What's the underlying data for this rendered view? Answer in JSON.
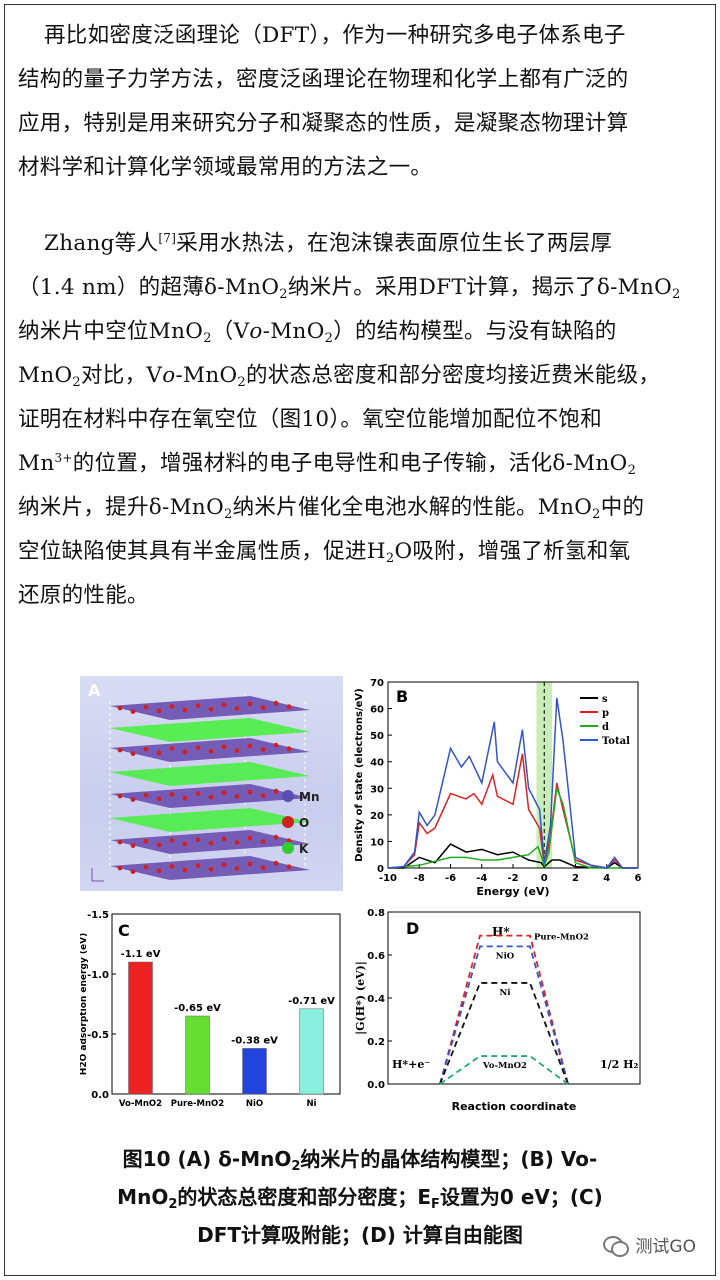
{
  "paragraph1": [
    "再比如密度泛函理论（DFT），作为一种研究多电子体系电子",
    "结构的量子力学方法，密度泛函理论在物理和化学上都有广泛的",
    "应用，特别是用来研究分子和凝聚态的性质，是凝聚态物理计算",
    "材料学和计算化学领域最常用的方法之一。"
  ],
  "paragraph2": {
    "l1a": "Zhang等人",
    "l1ref": "[7]",
    "l1b": "采用水热法，在泡沫镍表面原位生长了两层厚",
    "l2a": "（1.4 nm）的超薄δ-MnO",
    "l2sub": "2",
    "l2b": "纳米片。采用DFT计算，揭示了δ-MnO",
    "l2sub2": "2",
    "l3a": "纳米片中空位MnO",
    "l3sub": "2",
    "l3b": "（V",
    "l3o": "o",
    "l3c": "-MnO",
    "l3sub2": "2",
    "l3d": "）的结构模型。与没有缺陷的",
    "l4a": "MnO",
    "l4sub": "2",
    "l4b": "对比，V",
    "l4o": "o",
    "l4c": "-MnO",
    "l4sub2": "2",
    "l4d": "的状态总密度和部分密度均接近费米能级，",
    "l5": "证明在材料中存在氧空位（图10）。氧空位能增加配位不饱和",
    "l6a": "Mn",
    "l6sup": "3+",
    "l6b": "的位置，增强材料的电子电导性和电子传输，活化δ-MnO",
    "l6sub": "2",
    "l7a": "纳米片，提升δ-MnO",
    "l7sub": "2",
    "l7b": "纳米片催化全电池水解的性能。MnO",
    "l7sub2": "2",
    "l7c": "中的",
    "l8a": "空位缺陷使其具有半金属性质，促进H",
    "l8sub": "2",
    "l8b": "O吸附，增强了析氢和氧",
    "l9": "还原的性能。"
  },
  "figure": {
    "panelA": {
      "label": "A",
      "legend": [
        "Mn",
        "O",
        "K"
      ],
      "colors": [
        "#5a4fb0",
        "#cc2222",
        "#33cc33"
      ]
    },
    "panelB": {
      "label": "B",
      "ylabel": "Density of state (electrons/eV)",
      "xlabel": "Energy (eV)",
      "yticks": [
        "0",
        "10",
        "20",
        "30",
        "40",
        "50",
        "60",
        "70"
      ],
      "xticks": [
        "-10",
        "-8",
        "-6",
        "-4",
        "-2",
        "0",
        "2",
        "4",
        "6"
      ],
      "legend": [
        "s",
        "p",
        "d",
        "Total"
      ],
      "colors": [
        "#000000",
        "#dd2222",
        "#22aa22",
        "#3355cc"
      ]
    },
    "panelC": {
      "label": "C",
      "ylabel": "H2O adsorption energy (eV)",
      "yticks": [
        "-1.5",
        "-1.0",
        "-0.5",
        "0.0"
      ],
      "categories": [
        "Vo-MnO2",
        "Pure-MnO2",
        "NiO",
        "Ni"
      ],
      "values": [
        -1.1,
        -0.65,
        -0.38,
        -0.71
      ],
      "value_labels": [
        "-1.1 eV",
        "-0.65 eV",
        "-0.38 eV",
        "-0.71 eV"
      ],
      "colors": [
        "#ee2222",
        "#66dd33",
        "#2244dd",
        "#88eedd"
      ]
    },
    "panelD": {
      "label": "D",
      "ylabel": "|G(H*) (eV)|",
      "xlabel": "Reaction coordinate",
      "yticks": [
        "0.0",
        "0.2",
        "0.4",
        "0.6",
        "0.8"
      ],
      "levels": [
        {
          "name": "Pure-MnO2",
          "value": 0.69,
          "color": "#dd2222"
        },
        {
          "name": "NiO",
          "value": 0.64,
          "color": "#3355cc"
        },
        {
          "name": "Ni",
          "value": 0.47,
          "color": "#111111"
        },
        {
          "name": "Vo-MnO2",
          "value": 0.13,
          "color": "#22aa77"
        }
      ],
      "annotations": {
        "hstar": "H*",
        "left": "H*+e⁻",
        "right": "1/2 H₂"
      }
    }
  },
  "caption": {
    "line1a": "图10 (A) δ-MnO",
    "line1sub": "2",
    "line1b": "纳米片的晶体结构模型；(B) Vo-",
    "line2a": "MnO",
    "line2sub": "2",
    "line2b": "的状态总密度和部分密度；E",
    "line2sub2": "F",
    "line2c": "设置为0 eV；(C)",
    "line3": "DFT计算吸附能；(D) 计算自由能图"
  },
  "brand": {
    "name": "测试GO",
    "icon": "wechat-icon"
  }
}
